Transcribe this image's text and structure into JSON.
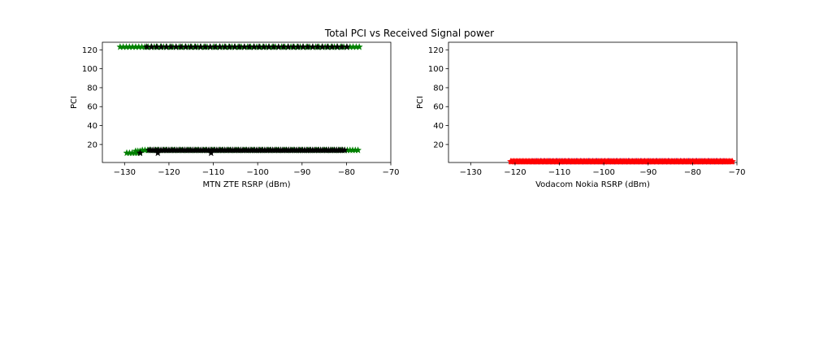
{
  "figure": {
    "title": "Total PCI vs Received Signal power"
  },
  "chart_data": [
    {
      "type": "scatter",
      "title": "",
      "xlabel": "MTN ZTE RSRP (dBm)",
      "ylabel": "PCI",
      "xlim": [
        -135,
        -70
      ],
      "ylim": [
        1,
        128
      ],
      "xticks": [
        -130,
        -120,
        -110,
        -100,
        -90,
        -80,
        -70
      ],
      "yticks": [
        20,
        40,
        60,
        80,
        100,
        120
      ],
      "grid": false,
      "marker": "star",
      "series": [
        {
          "color": "#008000",
          "segments": [
            {
              "pci": 123,
              "from": -131,
              "to": -76.5,
              "step": 0.7
            },
            {
              "pci": 14,
              "from": -126,
              "to": -77,
              "step": 0.6
            },
            {
              "pci": 11,
              "from": -129.5,
              "to": -126.5,
              "step": 0.6
            },
            {
              "pci": 13,
              "from": -127.5,
              "to": -126.5,
              "step": 0.5
            }
          ]
        },
        {
          "color": "#000000",
          "segments": [
            {
              "pci": 123,
              "from": -125,
              "to": -79,
              "step": 1.1
            },
            {
              "pci": 14,
              "from": -124.5,
              "to": -80,
              "step": 0.45
            },
            {
              "pci": 11,
              "from": -126.5,
              "to": -122.5,
              "step": 4.0
            },
            {
              "pci": 11,
              "from": -110.5,
              "to": -110.5,
              "step": 1.0
            }
          ]
        }
      ]
    },
    {
      "type": "scatter",
      "title": "",
      "xlabel": "Vodacom Nokia RSRP (dBm)",
      "ylabel": "PCI",
      "xlim": [
        -135,
        -70
      ],
      "ylim": [
        1,
        128
      ],
      "xticks": [
        -130,
        -120,
        -110,
        -100,
        -90,
        -80,
        -70
      ],
      "yticks": [
        20,
        40,
        60,
        80,
        100,
        120
      ],
      "grid": false,
      "marker": "star",
      "series": [
        {
          "color": "#0000ff",
          "segments": [
            {
              "pci": 2,
              "from": -116,
              "to": -72,
              "step": 0.9
            }
          ]
        },
        {
          "color": "#ff0000",
          "segments": [
            {
              "pci": 2,
              "from": -121,
              "to": -71,
              "step": 0.25
            }
          ]
        }
      ]
    }
  ]
}
